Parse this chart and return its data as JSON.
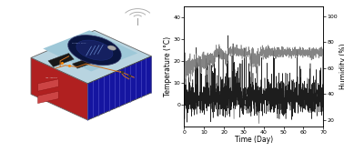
{
  "fig_width": 3.78,
  "fig_height": 1.67,
  "dpi": 100,
  "chart_bg": "#ffffff",
  "temp_color": "#111111",
  "humidity_color": "#888888",
  "temp_ylim": [
    -10,
    45
  ],
  "temp_yticks": [
    0,
    10,
    20,
    30,
    40
  ],
  "humidity_ylim": [
    15,
    108
  ],
  "humidity_yticks": [
    20,
    40,
    60,
    80,
    100
  ],
  "xlim": [
    0,
    70
  ],
  "xticks": [
    0,
    10,
    20,
    30,
    40,
    50,
    60,
    70
  ],
  "xlabel": "Time (Day)",
  "ylabel_left": "Temperature (°C)",
  "ylabel_right": "Humidity (%)"
}
